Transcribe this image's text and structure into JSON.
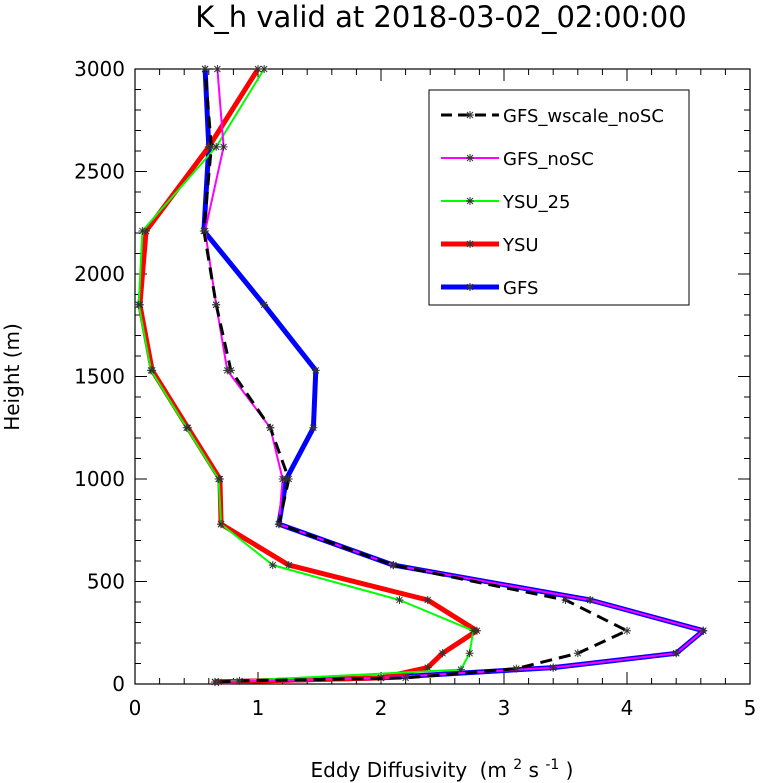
{
  "chart_data": {
    "type": "line",
    "title": "K_h valid at 2018-03-02_02:00:00",
    "xlabel": "Eddy Diffusivity",
    "xlabel_unit": "(m",
    "xlabel_unit_sup1": "2",
    "xlabel_unit_mid": " s",
    "xlabel_unit_sup2": "-1",
    "xlabel_unit_end": ")",
    "ylabel": "Height (m)",
    "xlim": [
      0,
      5
    ],
    "ylim": [
      0,
      3000
    ],
    "xticks": [
      "0",
      "1",
      "2",
      "3",
      "4",
      "5"
    ],
    "yticks": [
      "0",
      "500",
      "1000",
      "1500",
      "2000",
      "2500",
      "3000"
    ],
    "legend_position": "top-right",
    "series": [
      {
        "name": "GFS_wscale_noSC",
        "color": "#000000",
        "dashed": true,
        "width": 3,
        "x": [
          0.68,
          0.85,
          2.2,
          3.1,
          3.6,
          4.0,
          3.5,
          2.1,
          1.17,
          1.25,
          1.1,
          0.78,
          0.66,
          0.56,
          0.62,
          0.57
        ],
        "y": [
          10,
          15,
          30,
          75,
          150,
          260,
          410,
          580,
          780,
          1000,
          1250,
          1530,
          1850,
          2210,
          2620,
          3000
        ]
      },
      {
        "name": "GFS_noSC",
        "color": "#ff00ff",
        "dashed": false,
        "width": 2,
        "x": [
          0.65,
          2.0,
          3.4,
          4.4,
          4.62,
          3.7,
          2.1,
          1.17,
          1.2,
          1.1,
          0.75,
          0.66,
          0.57,
          0.72,
          0.67
        ],
        "y": [
          10,
          30,
          80,
          150,
          260,
          410,
          580,
          780,
          1000,
          1250,
          1530,
          1850,
          2210,
          2620,
          3000
        ]
      },
      {
        "name": "YSU_25",
        "color": "#00ff00",
        "dashed": false,
        "width": 2,
        "x": [
          0.65,
          2.65,
          2.72,
          2.75,
          2.15,
          1.12,
          0.7,
          0.68,
          0.42,
          0.13,
          0.03,
          0.06,
          0.66,
          1.05
        ],
        "y": [
          10,
          70,
          150,
          260,
          410,
          580,
          780,
          1000,
          1250,
          1530,
          1850,
          2210,
          2620,
          3000
        ]
      },
      {
        "name": "YSU",
        "color": "#ff0000",
        "dashed": false,
        "width": 5,
        "x": [
          0.65,
          2.0,
          2.38,
          2.5,
          2.78,
          2.38,
          1.25,
          0.7,
          0.69,
          0.43,
          0.14,
          0.04,
          0.09,
          0.6,
          1.0
        ],
        "y": [
          10,
          30,
          80,
          150,
          260,
          410,
          580,
          780,
          1000,
          1250,
          1530,
          1850,
          2210,
          2620,
          3000
        ]
      },
      {
        "name": "GFS",
        "color": "#0000ff",
        "dashed": false,
        "width": 5,
        "x": [
          0.65,
          2.0,
          3.4,
          4.4,
          4.62,
          3.7,
          2.1,
          1.17,
          1.23,
          1.45,
          1.47,
          1.05,
          0.56,
          0.6,
          0.57
        ],
        "y": [
          10,
          30,
          80,
          150,
          260,
          410,
          580,
          780,
          1000,
          1250,
          1530,
          1850,
          2210,
          2620,
          3000
        ]
      }
    ]
  }
}
